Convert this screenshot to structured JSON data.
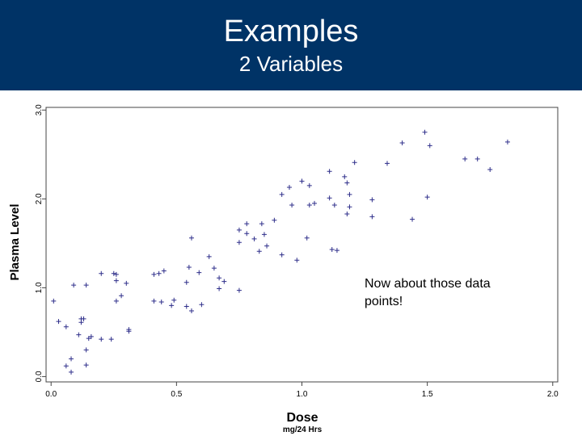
{
  "header": {
    "title": "Examples",
    "subtitle": "2 Variables"
  },
  "chart_data": {
    "type": "scatter",
    "x_label": "Dose",
    "x_sublabel": "mg/24 Hrs",
    "y_label": "Plasma Level",
    "annotation": "Now about those data points!",
    "color": "#2e2e8a",
    "marker": "+",
    "xlim": [
      -0.02,
      2.02
    ],
    "ylim": [
      -0.06,
      3.03
    ],
    "xticks": [
      {
        "value": 0,
        "label": "0.0"
      },
      {
        "value": 0.5,
        "label": "0.5"
      },
      {
        "value": 1,
        "label": "1.0"
      },
      {
        "value": 1.5,
        "label": "1.5"
      },
      {
        "value": 2,
        "label": "2.0"
      }
    ],
    "yticks": [
      {
        "value": 0,
        "label": "0.0"
      },
      {
        "value": 1,
        "label": "1.0"
      },
      {
        "value": 2,
        "label": "2.0"
      },
      {
        "value": 3,
        "label": "3.0"
      }
    ],
    "x": [
      0.01,
      0.03,
      0.06,
      0.06,
      0.08,
      0.08,
      0.09,
      0.12,
      0.11,
      0.12,
      0.13,
      0.14,
      0.14,
      0.14,
      0.15,
      0.16,
      0.2,
      0.2,
      0.24,
      0.26,
      0.26,
      0.26,
      0.25,
      0.28,
      0.31,
      0.31,
      0.3,
      0.41,
      0.41,
      0.43,
      0.44,
      0.45,
      0.48,
      0.49,
      0.54,
      0.54,
      0.55,
      0.56,
      0.56,
      0.59,
      0.6,
      0.63,
      0.65,
      0.67,
      0.67,
      0.69,
      0.75,
      0.75,
      0.75,
      0.78,
      0.78,
      0.81,
      0.83,
      0.84,
      0.85,
      0.86,
      0.89,
      0.92,
      0.92,
      0.95,
      0.96,
      0.98,
      1.0,
      1.03,
      1.02,
      1.03,
      1.05,
      1.11,
      1.11,
      1.12,
      1.14,
      1.13,
      1.17,
      1.18,
      1.18,
      1.19,
      1.19,
      1.21,
      1.28,
      1.28,
      1.34,
      1.4,
      1.44,
      1.49,
      1.5,
      1.51,
      1.65,
      1.7,
      1.75,
      1.82
    ],
    "y": [
      0.85,
      0.62,
      0.56,
      0.12,
      0.2,
      0.05,
      1.03,
      0.61,
      0.47,
      0.65,
      0.65,
      1.03,
      0.3,
      0.13,
      0.43,
      0.45,
      0.42,
      1.16,
      0.42,
      0.85,
      1.15,
      1.08,
      1.16,
      0.91,
      0.53,
      0.51,
      1.05,
      1.15,
      0.85,
      1.16,
      0.84,
      1.19,
      0.8,
      0.86,
      1.06,
      0.79,
      1.23,
      0.74,
      1.56,
      1.17,
      0.81,
      1.35,
      1.22,
      1.11,
      0.99,
      1.07,
      1.65,
      1.51,
      0.97,
      1.61,
      1.72,
      1.55,
      1.41,
      1.72,
      1.6,
      1.47,
      1.76,
      2.05,
      1.37,
      2.13,
      1.93,
      1.31,
      2.2,
      2.15,
      1.56,
      1.93,
      1.95,
      2.31,
      2.01,
      1.43,
      1.42,
      1.93,
      2.25,
      2.18,
      1.83,
      1.91,
      2.05,
      2.41,
      1.99,
      1.8,
      2.4,
      2.63,
      1.77,
      2.75,
      2.02,
      2.6,
      2.45,
      2.45,
      2.33,
      2.64
    ]
  }
}
